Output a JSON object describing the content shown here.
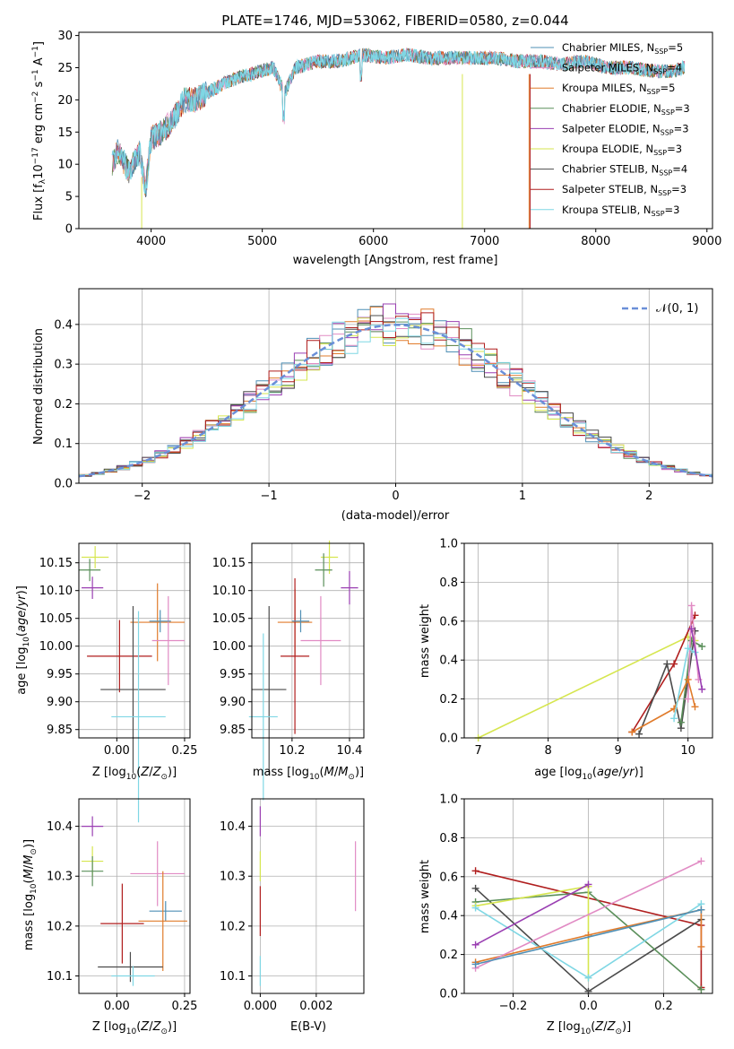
{
  "colors": {
    "chabrier_miles": "#4f8fb5",
    "salpeter_miles": "#e18bc4",
    "kroupa_miles": "#e07b2b",
    "chabrier_elodie": "#5a8f5a",
    "salpeter_elodie": "#9a3fb2",
    "kroupa_elodie": "#d6e64f",
    "chabrier_stelib": "#4b4b4b",
    "salpeter_stelib": "#b01e1e",
    "kroupa_stelib": "#7fd7e4",
    "normal": "#6a8fd8"
  },
  "chart_data": [
    {
      "id": "spectrum",
      "type": "line",
      "title": "PLATE=1746, MJD=53062, FIBERID=0580, z=0.044",
      "xlabel": "wavelength [Angstrom, rest frame]",
      "ylabel": "Flux [f_λ 10^-17 erg cm^-2 s^-1 A^-1]",
      "xlim": [
        3350,
        9050
      ],
      "ylim": [
        0,
        30.5
      ],
      "xticks": [
        "4000",
        "5000",
        "6000",
        "7000",
        "8000",
        "9000"
      ],
      "yticks": [
        "0",
        "5",
        "10",
        "15",
        "20",
        "25",
        "30"
      ],
      "x": [
        3650,
        3700,
        3800,
        3900,
        3950,
        4000,
        4100,
        4200,
        4300,
        4400,
        4500,
        4700,
        4900,
        5100,
        5200,
        5300,
        5500,
        5700,
        5900,
        6100,
        6300,
        6500,
        6700,
        6900,
        7100,
        7300,
        7500,
        7700,
        7900,
        8100,
        8300,
        8500,
        8700,
        8800
      ],
      "y": [
        10,
        12,
        9,
        12,
        6,
        14,
        15,
        17,
        20,
        20,
        21,
        23,
        24,
        25,
        21,
        25,
        26,
        26,
        27,
        26.5,
        27,
        26.5,
        26.5,
        26.5,
        26.5,
        26,
        26,
        25.5,
        26,
        25,
        25,
        24.5,
        24.5,
        25
      ],
      "legend": [
        {
          "name": "Chabrier MILES, N_SSP=5",
          "color_key": "chabrier_miles"
        },
        {
          "name": "Salpeter MILES, N_SSP=4",
          "color_key": "salpeter_miles"
        },
        {
          "name": "Kroupa MILES, N_SSP=5",
          "color_key": "kroupa_miles"
        },
        {
          "name": "Chabrier ELODIE, N_SSP=3",
          "color_key": "chabrier_elodie"
        },
        {
          "name": "Salpeter ELODIE, N_SSP=3",
          "color_key": "salpeter_elodie"
        },
        {
          "name": "Kroupa ELODIE, N_SSP=3",
          "color_key": "kroupa_elodie"
        },
        {
          "name": "Chabrier STELIB, N_SSP=4",
          "color_key": "chabrier_stelib"
        },
        {
          "name": "Salpeter STELIB, N_SSP=3",
          "color_key": "salpeter_stelib"
        },
        {
          "name": "Kroupa STELIB, N_SSP=3",
          "color_key": "kroupa_stelib"
        }
      ],
      "legend_placement": "right"
    },
    {
      "id": "residuals",
      "type": "line",
      "xlabel": "(data-model)/error",
      "ylabel": "Normed distribution",
      "xlim": [
        -2.5,
        2.5
      ],
      "ylim": [
        0,
        0.49
      ],
      "xticks": [
        "−2",
        "−1",
        "0",
        "1",
        "2"
      ],
      "yticks": [
        "0.0",
        "0.1",
        "0.2",
        "0.3",
        "0.4"
      ],
      "legend": [
        {
          "name": "𝒩(0, 1)",
          "color_key": "normal"
        }
      ],
      "legend_placement": "top-right",
      "grid": true
    },
    {
      "id": "age_vs_z",
      "type": "scatter",
      "xlabel": "Z [log10(Z/Z⊙)]",
      "ylabel": "age  [log10(age/yr)]",
      "xlim": [
        -0.14,
        0.27
      ],
      "ylim": [
        9.835,
        10.185
      ],
      "xticks": [
        "0.00",
        "0.25"
      ],
      "yticks": [
        "9.85",
        "9.90",
        "9.95",
        "10.00",
        "10.05",
        "10.10",
        "10.15"
      ],
      "grid": true,
      "points": [
        {
          "series": "kroupa_elodie",
          "x": -0.08,
          "y": 10.16,
          "xerr": 0.05,
          "yerr": 0.02
        },
        {
          "series": "chabrier_elodie",
          "x": -0.1,
          "y": 10.137,
          "xerr": 0.04,
          "yerr": 0.02
        },
        {
          "series": "salpeter_elodie",
          "x": -0.09,
          "y": 10.105,
          "xerr": 0.04,
          "yerr": 0.02
        },
        {
          "series": "kroupa_miles",
          "x": 0.15,
          "y": 10.043,
          "xerr": 0.1,
          "yerr": 0.07
        },
        {
          "series": "salpeter_miles",
          "x": 0.19,
          "y": 10.01,
          "xerr": 0.06,
          "yerr": 0.08
        },
        {
          "series": "salpeter_stelib",
          "x": 0.01,
          "y": 9.982,
          "xerr": 0.12,
          "yerr": 0.065
        },
        {
          "series": "chabrier_stelib",
          "x": 0.06,
          "y": 9.922,
          "xerr": 0.12,
          "yerr": 0.15
        },
        {
          "series": "kroupa_stelib",
          "x": 0.08,
          "y": 9.873,
          "xerr": 0.1,
          "yerr": 0.19
        },
        {
          "series": "chabrier_miles",
          "x": 0.16,
          "y": 10.045,
          "xerr": 0.04,
          "yerr": 0.02
        }
      ]
    },
    {
      "id": "age_vs_mass",
      "type": "scatter",
      "xlabel": "mass [log10(M/M⊙)]",
      "xlim": [
        10.06,
        10.45
      ],
      "ylim": [
        9.835,
        10.185
      ],
      "xticks": [
        "10.2",
        "10.4"
      ],
      "yticks": [
        "9.85",
        "9.90",
        "9.95",
        "10.00",
        "10.05",
        "10.10",
        "10.15"
      ],
      "grid": true,
      "points": [
        {
          "series": "kroupa_elodie",
          "x": 10.33,
          "y": 10.16,
          "xerr": 0.03,
          "yerr": 0.03
        },
        {
          "series": "chabrier_elodie",
          "x": 10.31,
          "y": 10.137,
          "xerr": 0.03,
          "yerr": 0.03
        },
        {
          "series": "salpeter_elodie",
          "x": 10.4,
          "y": 10.105,
          "xerr": 0.03,
          "yerr": 0.03
        },
        {
          "series": "kroupa_miles",
          "x": 10.21,
          "y": 10.043,
          "xerr": 0.06,
          "yerr": 0.06
        },
        {
          "series": "salpeter_miles",
          "x": 10.3,
          "y": 10.01,
          "xerr": 0.07,
          "yerr": 0.08
        },
        {
          "series": "salpeter_stelib",
          "x": 10.21,
          "y": 9.982,
          "xerr": 0.05,
          "yerr": 0.14
        },
        {
          "series": "chabrier_stelib",
          "x": 10.12,
          "y": 9.922,
          "xerr": 0.06,
          "yerr": 0.15
        },
        {
          "series": "kroupa_stelib",
          "x": 10.1,
          "y": 9.873,
          "xerr": 0.05,
          "yerr": 0.15
        },
        {
          "series": "chabrier_miles",
          "x": 10.23,
          "y": 10.045,
          "xerr": 0.03,
          "yerr": 0.02
        }
      ]
    },
    {
      "id": "weight_vs_age",
      "type": "line",
      "xlabel": "age  [log10(age/yr)]",
      "ylabel": "mass weight",
      "xlim": [
        6.8,
        10.35
      ],
      "ylim": [
        0,
        1
      ],
      "xticks": [
        "7",
        "8",
        "9",
        "10"
      ],
      "yticks": [
        "0.0",
        "0.2",
        "0.4",
        "0.6",
        "0.8",
        "1.0"
      ],
      "grid": true,
      "series": [
        {
          "name": "kroupa_elodie",
          "points": [
            [
              7.0,
              0.0
            ],
            [
              10.0,
              0.52
            ],
            [
              10.1,
              0.5
            ]
          ]
        },
        {
          "name": "salpeter_stelib",
          "points": [
            [
              9.2,
              0.03
            ],
            [
              9.8,
              0.38
            ],
            [
              10.1,
              0.63
            ]
          ]
        },
        {
          "name": "chabrier_stelib",
          "points": [
            [
              9.3,
              0.02
            ],
            [
              9.7,
              0.38
            ],
            [
              9.9,
              0.05
            ],
            [
              10.1,
              0.55
            ]
          ]
        },
        {
          "name": "chabrier_elodie",
          "points": [
            [
              9.9,
              0.08
            ],
            [
              10.05,
              0.5
            ],
            [
              10.2,
              0.47
            ]
          ]
        },
        {
          "name": "salpeter_miles",
          "points": [
            [
              10.0,
              0.2
            ],
            [
              10.05,
              0.68
            ],
            [
              10.15,
              0.3
            ]
          ]
        },
        {
          "name": "kroupa_miles",
          "points": [
            [
              9.2,
              0.03
            ],
            [
              9.8,
              0.15
            ],
            [
              10.0,
              0.3
            ],
            [
              10.1,
              0.16
            ]
          ]
        },
        {
          "name": "kroupa_stelib",
          "points": [
            [
              9.8,
              0.1
            ],
            [
              10.0,
              0.46
            ],
            [
              10.1,
              0.44
            ]
          ]
        },
        {
          "name": "salpeter_elodie",
          "points": [
            [
              10.05,
              0.56
            ],
            [
              10.2,
              0.25
            ]
          ]
        }
      ]
    },
    {
      "id": "mass_vs_z",
      "type": "scatter",
      "xlabel": "Z [log10(Z/Z⊙)]",
      "ylabel": "mass [log10(M/M⊙)]",
      "xlim": [
        -0.14,
        0.27
      ],
      "ylim": [
        10.065,
        10.455
      ],
      "xticks": [
        "0.00",
        "0.25"
      ],
      "yticks": [
        "10.1",
        "10.2",
        "10.3",
        "10.4"
      ],
      "grid": true,
      "points": [
        {
          "series": "salpeter_elodie",
          "x": -0.09,
          "y": 10.4,
          "xerr": 0.04,
          "yerr": 0.02
        },
        {
          "series": "kroupa_elodie",
          "x": -0.09,
          "y": 10.33,
          "xerr": 0.04,
          "yerr": 0.03
        },
        {
          "series": "chabrier_elodie",
          "x": -0.09,
          "y": 10.31,
          "xerr": 0.04,
          "yerr": 0.03
        },
        {
          "series": "salpeter_miles",
          "x": 0.15,
          "y": 10.305,
          "xerr": 0.1,
          "yerr": 0.065
        },
        {
          "series": "chabrier_miles",
          "x": 0.18,
          "y": 10.23,
          "xerr": 0.06,
          "yerr": 0.02
        },
        {
          "series": "kroupa_miles",
          "x": 0.17,
          "y": 10.21,
          "xerr": 0.09,
          "yerr": 0.1
        },
        {
          "series": "salpeter_stelib",
          "x": 0.02,
          "y": 10.205,
          "xerr": 0.08,
          "yerr": 0.08
        },
        {
          "series": "chabrier_stelib",
          "x": 0.05,
          "y": 10.118,
          "xerr": 0.12,
          "yerr": 0.03
        },
        {
          "series": "kroupa_stelib",
          "x": 0.06,
          "y": 10.1,
          "xerr": 0.08,
          "yerr": 0.02
        }
      ]
    },
    {
      "id": "mass_vs_ebv",
      "type": "scatter",
      "xlabel": "E(B-V)",
      "xlim": [
        -0.0003,
        0.0037
      ],
      "ylim": [
        10.065,
        10.455
      ],
      "xticks": [
        "0.000",
        "0.002"
      ],
      "yticks": [
        "10.1",
        "10.2",
        "10.3",
        "10.4"
      ],
      "grid": true,
      "points": [
        {
          "series": "salpeter_elodie",
          "x": 0.0,
          "y": 10.41,
          "yerr": 0.03
        },
        {
          "series": "kroupa_elodie",
          "x": 0.0,
          "y": 10.32,
          "yerr": 0.03
        },
        {
          "series": "salpeter_stelib",
          "x": 0.0,
          "y": 10.23,
          "yerr": 0.05
        },
        {
          "series": "kroupa_stelib",
          "x": 0.0,
          "y": 10.11,
          "yerr": 0.03
        },
        {
          "series": "salpeter_miles",
          "x": 0.0034,
          "y": 10.3,
          "yerr": 0.07
        }
      ]
    },
    {
      "id": "weight_vs_z",
      "type": "line",
      "xlabel": "Z [log10(Z/Z⊙)]",
      "ylabel": "mass weight",
      "xlim": [
        -0.33,
        0.33
      ],
      "ylim": [
        0,
        1
      ],
      "xticks": [
        "−0.2",
        "0.0",
        "0.2"
      ],
      "yticks": [
        "0.0",
        "0.2",
        "0.4",
        "0.6",
        "0.8",
        "1.0"
      ],
      "grid": true,
      "series": [
        {
          "name": "salpeter_stelib",
          "points": [
            [
              -0.3,
              0.63
            ],
            [
              0.3,
              0.35
            ],
            [
              0.3,
              0.03
            ]
          ]
        },
        {
          "name": "chabrier_stelib",
          "points": [
            [
              -0.3,
              0.54
            ],
            [
              0.0,
              0.01
            ],
            [
              0.3,
              0.38
            ]
          ]
        },
        {
          "name": "chabrier_elodie",
          "points": [
            [
              -0.3,
              0.47
            ],
            [
              0.0,
              0.52
            ],
            [
              0.3,
              0.02
            ]
          ]
        },
        {
          "name": "kroupa_elodie",
          "points": [
            [
              -0.3,
              0.45
            ],
            [
              0.0,
              0.55
            ],
            [
              0.0,
              0.08
            ]
          ]
        },
        {
          "name": "kroupa_stelib",
          "points": [
            [
              -0.3,
              0.44
            ],
            [
              0.0,
              0.08
            ],
            [
              0.3,
              0.46
            ]
          ]
        },
        {
          "name": "salpeter_elodie",
          "points": [
            [
              -0.3,
              0.25
            ],
            [
              0.0,
              0.56
            ]
          ]
        },
        {
          "name": "kroupa_miles",
          "points": [
            [
              -0.3,
              0.16
            ],
            [
              0.0,
              0.3
            ],
            [
              0.3,
              0.43
            ],
            [
              0.3,
              0.24
            ]
          ]
        },
        {
          "name": "salpeter_miles",
          "points": [
            [
              -0.3,
              0.13
            ],
            [
              0.3,
              0.68
            ]
          ]
        },
        {
          "name": "chabrier_miles",
          "points": [
            [
              -0.3,
              0.15
            ],
            [
              0.3,
              0.43
            ]
          ]
        }
      ]
    }
  ]
}
